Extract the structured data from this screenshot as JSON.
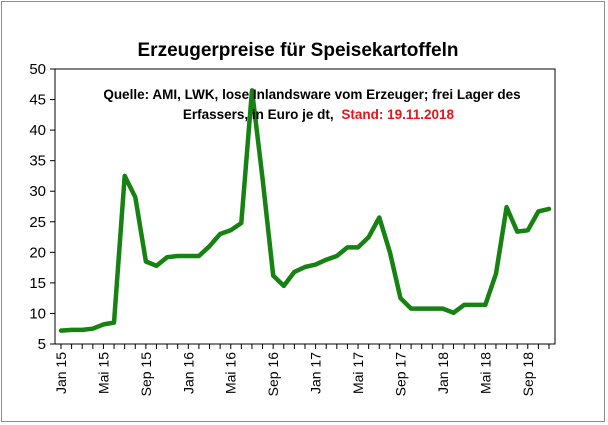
{
  "chart_data": {
    "type": "line",
    "title": "Erzeugerpreise für Speisekartoffeln",
    "annotation": {
      "line1": "Quelle: AMI, LWK,  lose Inlandsware vom Erzeuger; frei Lager des",
      "line2": "Erfassers, in Euro je dt,",
      "stand": "Stand: 19.11.2018"
    },
    "xlabel": "",
    "ylabel": "",
    "ylim": [
      5,
      50
    ],
    "yticks": [
      5,
      10,
      15,
      20,
      25,
      30,
      35,
      40,
      45,
      50
    ],
    "xtick_labels": [
      "Jan 15",
      "Mai 15",
      "Sep 15",
      "Jan 16",
      "Mai 16",
      "Sep 16",
      "Jan 17",
      "Mai 17",
      "Sep 17",
      "Jan 18",
      "Mai 18",
      "Sep 18"
    ],
    "x": [
      "Jan 15",
      "Feb 15",
      "Mär 15",
      "Apr 15",
      "Mai 15",
      "Jun 15",
      "Jul 15",
      "Aug 15",
      "Sep 15",
      "Okt 15",
      "Nov 15",
      "Dez 15",
      "Jan 16",
      "Feb 16",
      "Mär 16",
      "Apr 16",
      "Mai 16",
      "Jun 16",
      "Jul 16",
      "Aug 16",
      "Sep 16",
      "Okt 16",
      "Nov 16",
      "Dez 16",
      "Jan 17",
      "Feb 17",
      "Mär 17",
      "Apr 17",
      "Mai 17",
      "Jun 17",
      "Jul 17",
      "Aug 17",
      "Sep 17",
      "Okt 17",
      "Nov 17",
      "Dez 17",
      "Jan 18",
      "Feb 18",
      "Mär 18",
      "Apr 18",
      "Mai 18",
      "Jun 18",
      "Jul 18",
      "Aug 18",
      "Sep 18",
      "Okt 18",
      "Nov 18"
    ],
    "series": [
      {
        "values": [
          7.2,
          7.3,
          7.3,
          7.5,
          8.2,
          8.5,
          32.5,
          29.0,
          18.5,
          17.8,
          19.2,
          19.4,
          19.4,
          19.4,
          21.0,
          23.0,
          23.6,
          24.8,
          46.5,
          32.0,
          16.2,
          14.5,
          16.8,
          17.6,
          18.0,
          18.8,
          19.4,
          20.8,
          20.8,
          22.5,
          25.7,
          20.0,
          12.5,
          10.8,
          10.8,
          10.8,
          10.8,
          10.1,
          11.4,
          11.4,
          11.4,
          16.5,
          27.4,
          23.4,
          23.6,
          26.7,
          27.1
        ],
        "color": "#168212"
      }
    ],
    "grid": false,
    "legend": "none"
  }
}
